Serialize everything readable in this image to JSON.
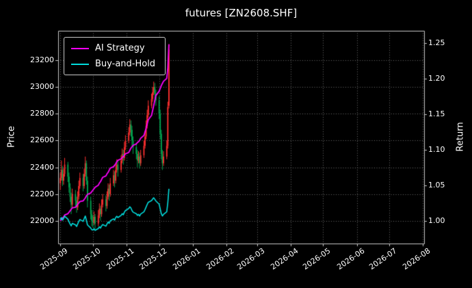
{
  "chart_data": {
    "type": "mixed-candlestick-line",
    "title": "futures [ZN2608.SHF]",
    "grid": true,
    "legend_position": "upper-left",
    "x_axis": {
      "unit": "days since 2025-09-01",
      "range": [
        -2,
        335
      ],
      "ticks": [
        {
          "label": "2025-09",
          "day": 0
        },
        {
          "label": "2025-10",
          "day": 30
        },
        {
          "label": "2025-11",
          "day": 61
        },
        {
          "label": "2025-12",
          "day": 91
        },
        {
          "label": "2026-01",
          "day": 122
        },
        {
          "label": "2026-02",
          "day": 153
        },
        {
          "label": "2026-03",
          "day": 181
        },
        {
          "label": "2026-04",
          "day": 212
        },
        {
          "label": "2026-05",
          "day": 242
        },
        {
          "label": "2026-06",
          "day": 273
        },
        {
          "label": "2026-07",
          "day": 303
        },
        {
          "label": "2026-08",
          "day": 334
        }
      ]
    },
    "left_axis": {
      "label": "Price",
      "range": [
        21830,
        23420
      ],
      "ticks": [
        {
          "label": "22000",
          "value": 22000
        },
        {
          "label": "22200",
          "value": 22200
        },
        {
          "label": "22400",
          "value": 22400
        },
        {
          "label": "22600",
          "value": 22600
        },
        {
          "label": "22800",
          "value": 22800
        },
        {
          "label": "23000",
          "value": 23000
        },
        {
          "label": "23200",
          "value": 23200
        }
      ]
    },
    "right_axis": {
      "label": "Return",
      "range": [
        0.968,
        1.267
      ],
      "ticks": [
        {
          "label": "1.00",
          "value": 1.0
        },
        {
          "label": "1.05",
          "value": 1.05
        },
        {
          "label": "1.10",
          "value": 1.1
        },
        {
          "label": "1.15",
          "value": 1.15
        },
        {
          "label": "1.20",
          "value": 1.2
        },
        {
          "label": "1.25",
          "value": 1.25
        }
      ]
    },
    "colors": {
      "background": "#000000",
      "text": "#ffffff",
      "grid": "#6e6e6e",
      "frame": "#c8c8c8",
      "up": "#ff3030",
      "down": "#00a550",
      "ai": "#ff00ff",
      "bh": "#00dddd"
    },
    "trade_days": [
      0,
      1,
      2,
      3,
      4,
      7,
      8,
      9,
      10,
      11,
      14,
      15,
      16,
      17,
      18,
      21,
      22,
      23,
      24,
      25,
      28,
      29,
      30,
      31,
      32,
      35,
      36,
      37,
      38,
      39,
      42,
      43,
      44,
      45,
      46,
      49,
      50,
      51,
      52,
      53,
      56,
      57,
      58,
      59,
      60,
      63,
      64,
      65,
      66,
      67,
      70,
      71,
      72,
      73,
      74,
      77,
      78,
      79,
      80,
      81,
      84,
      85,
      86,
      87,
      88,
      91,
      92,
      93,
      94,
      95,
      98,
      99,
      100
    ],
    "candles": [
      [
        0,
        22280,
        22360,
        22230,
        22320
      ],
      [
        1,
        22320,
        22450,
        22300,
        22380
      ],
      [
        2,
        22380,
        22410,
        22260,
        22300
      ],
      [
        3,
        22300,
        22390,
        22270,
        22350
      ],
      [
        4,
        22350,
        22470,
        22330,
        22420
      ],
      [
        7,
        22420,
        22440,
        22290,
        22330
      ],
      [
        8,
        22330,
        22360,
        22210,
        22250
      ],
      [
        9,
        22250,
        22280,
        22140,
        22180
      ],
      [
        10,
        22180,
        22210,
        22050,
        22120
      ],
      [
        11,
        22120,
        22240,
        22100,
        22200
      ],
      [
        14,
        22200,
        22230,
        22110,
        22150
      ],
      [
        15,
        22150,
        22180,
        22060,
        22100
      ],
      [
        16,
        22100,
        22220,
        22080,
        22180
      ],
      [
        17,
        22180,
        22300,
        22160,
        22260
      ],
      [
        18,
        22260,
        22360,
        22240,
        22320
      ],
      [
        21,
        22320,
        22350,
        22220,
        22260
      ],
      [
        22,
        22260,
        22390,
        22240,
        22350
      ],
      [
        23,
        22350,
        22480,
        22330,
        22430
      ],
      [
        24,
        22430,
        22450,
        22270,
        22300
      ],
      [
        25,
        22300,
        22330,
        22100,
        22150
      ],
      [
        28,
        22150,
        22180,
        22010,
        22050
      ],
      [
        29,
        22050,
        22080,
        21960,
        22000
      ],
      [
        30,
        22000,
        22040,
        21950,
        21990
      ],
      [
        31,
        21990,
        22070,
        21970,
        22030
      ],
      [
        32,
        22030,
        22050,
        21940,
        21980
      ],
      [
        35,
        21980,
        22080,
        21960,
        22040
      ],
      [
        36,
        22040,
        22130,
        22020,
        22090
      ],
      [
        37,
        22090,
        22110,
        22000,
        22050
      ],
      [
        38,
        22050,
        22160,
        22030,
        22120
      ],
      [
        39,
        22120,
        22200,
        22100,
        22160
      ],
      [
        42,
        22160,
        22190,
        22070,
        22110
      ],
      [
        43,
        22110,
        22220,
        22090,
        22180
      ],
      [
        44,
        22180,
        22280,
        22160,
        22240
      ],
      [
        45,
        22240,
        22270,
        22150,
        22200
      ],
      [
        46,
        22200,
        22320,
        22180,
        22280
      ],
      [
        49,
        22280,
        22380,
        22260,
        22340
      ],
      [
        50,
        22340,
        22370,
        22250,
        22300
      ],
      [
        51,
        22300,
        22420,
        22280,
        22380
      ],
      [
        52,
        22380,
        22460,
        22360,
        22420
      ],
      [
        53,
        22420,
        22450,
        22330,
        22380
      ],
      [
        56,
        22380,
        22490,
        22360,
        22450
      ],
      [
        57,
        22450,
        22540,
        22430,
        22500
      ],
      [
        58,
        22500,
        22530,
        22420,
        22470
      ],
      [
        59,
        22470,
        22590,
        22450,
        22550
      ],
      [
        60,
        22550,
        22640,
        22530,
        22600
      ],
      [
        63,
        22600,
        22700,
        22580,
        22660
      ],
      [
        64,
        22660,
        22760,
        22640,
        22720
      ],
      [
        65,
        22720,
        22750,
        22630,
        22680
      ],
      [
        66,
        22680,
        22710,
        22560,
        22600
      ],
      [
        67,
        22600,
        22630,
        22500,
        22550
      ],
      [
        70,
        22550,
        22580,
        22460,
        22500
      ],
      [
        71,
        22500,
        22530,
        22400,
        22450
      ],
      [
        72,
        22450,
        22520,
        22430,
        22480
      ],
      [
        73,
        22480,
        22510,
        22390,
        22430
      ],
      [
        74,
        22430,
        22530,
        22410,
        22490
      ],
      [
        77,
        22490,
        22600,
        22470,
        22560
      ],
      [
        78,
        22560,
        22670,
        22540,
        22630
      ],
      [
        79,
        22630,
        22750,
        22610,
        22710
      ],
      [
        80,
        22710,
        22830,
        22690,
        22790
      ],
      [
        81,
        22790,
        22900,
        22770,
        22860
      ],
      [
        84,
        22860,
        22950,
        22840,
        22910
      ],
      [
        85,
        22910,
        23000,
        22890,
        22960
      ],
      [
        86,
        22960,
        23040,
        22940,
        23000
      ],
      [
        87,
        23000,
        23030,
        22910,
        22950
      ],
      [
        88,
        22950,
        22980,
        22860,
        22900
      ],
      [
        91,
        22900,
        22930,
        22760,
        22800
      ],
      [
        92,
        22800,
        22830,
        22610,
        22650
      ],
      [
        93,
        22650,
        22680,
        22460,
        22500
      ],
      [
        94,
        22500,
        22530,
        22380,
        22430
      ],
      [
        95,
        22430,
        22520,
        22410,
        22480
      ],
      [
        98,
        22480,
        22600,
        22460,
        22560
      ],
      [
        99,
        22560,
        22890,
        22540,
        22850
      ],
      [
        100,
        22860,
        23320,
        22840,
        23280
      ]
    ],
    "series": [
      {
        "name": "AI Strategy",
        "axis": "right",
        "color_key": "ai",
        "width": 1.8,
        "values": [
          1.0,
          1.002,
          1.004,
          1.005,
          1.008,
          1.01,
          1.012,
          1.014,
          1.016,
          1.018,
          1.019,
          1.021,
          1.023,
          1.025,
          1.027,
          1.028,
          1.03,
          1.032,
          1.035,
          1.037,
          1.039,
          1.041,
          1.043,
          1.045,
          1.047,
          1.05,
          1.053,
          1.055,
          1.058,
          1.061,
          1.063,
          1.066,
          1.068,
          1.071,
          1.074,
          1.076,
          1.078,
          1.08,
          1.083,
          1.085,
          1.087,
          1.089,
          1.09,
          1.092,
          1.094,
          1.096,
          1.099,
          1.102,
          1.104,
          1.106,
          1.108,
          1.11,
          1.111,
          1.113,
          1.116,
          1.12,
          1.125,
          1.13,
          1.136,
          1.142,
          1.148,
          1.155,
          1.162,
          1.169,
          1.176,
          1.182,
          1.186,
          1.19,
          1.193,
          1.196,
          1.2,
          1.215,
          1.248
        ]
      },
      {
        "name": "Buy-and-Hold",
        "axis": "right",
        "color_key": "bh",
        "width": 1.6,
        "values": [
          1.0018,
          1.0045,
          1.0009,
          1.0031,
          1.0063,
          1.0022,
          0.9987,
          0.9955,
          0.9928,
          0.9964,
          0.9942,
          0.9919,
          0.9955,
          0.9991,
          1.0018,
          0.9991,
          1.0031,
          1.0067,
          1.0009,
          0.9942,
          0.9897,
          0.9874,
          0.987,
          0.9888,
          0.9865,
          0.9892,
          0.9915,
          0.9897,
          0.9928,
          0.9946,
          0.9924,
          0.9955,
          0.9982,
          0.9964,
          1.0,
          1.0027,
          1.0009,
          1.0045,
          1.0063,
          1.0045,
          1.0076,
          1.0099,
          1.0085,
          1.0121,
          1.0144,
          1.0171,
          1.0197,
          1.018,
          1.0144,
          1.0121,
          1.0099,
          1.0076,
          1.009,
          1.0067,
          1.0094,
          1.0126,
          1.0157,
          1.0193,
          1.0229,
          1.026,
          1.0283,
          1.0305,
          1.0323,
          1.0301,
          1.0278,
          1.0233,
          1.0166,
          1.0099,
          1.0067,
          1.009,
          1.0126,
          1.0256,
          1.0449
        ]
      }
    ]
  }
}
